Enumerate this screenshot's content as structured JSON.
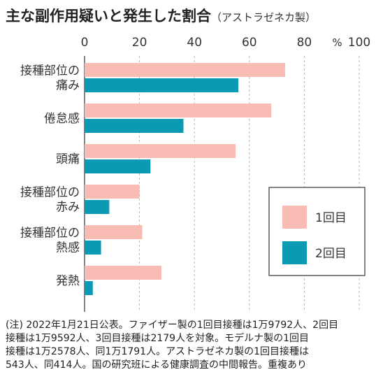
{
  "title": "主な副作用疑いと発生した割合",
  "subtitle": "（アストラゼネカ製）",
  "unit": "%",
  "colors": {
    "dose1": "#f8bcb4",
    "dose2": "#0a9ab4",
    "grid": "#b8b8b8",
    "axis": "#333333"
  },
  "chart_data": {
    "type": "bar",
    "orientation": "horizontal",
    "title": "主な副作用疑いと発生した割合",
    "subtitle": "（アストラゼネカ製）",
    "categories": [
      [
        "接種部位の",
        "痛み"
      ],
      [
        "倦怠感"
      ],
      [
        "頭痛"
      ],
      [
        "接種部位の",
        "赤み"
      ],
      [
        "接種部位の",
        "熱感"
      ],
      [
        "発熱"
      ]
    ],
    "series": [
      {
        "name": "1回目",
        "color": "#f8bcb4",
        "values": [
          73,
          68,
          55,
          20,
          21,
          28
        ]
      },
      {
        "name": "2回目",
        "color": "#0a9ab4",
        "values": [
          56,
          36,
          24,
          9,
          6,
          3
        ]
      }
    ],
    "xlim": [
      0,
      100
    ],
    "ticks": [
      "0",
      "20",
      "40",
      "60",
      "80",
      "100"
    ],
    "tick_values": [
      0,
      20,
      40,
      60,
      80,
      100
    ],
    "unit_label": "%",
    "grid": true,
    "legend_position": "right"
  },
  "note": [
    "(注) 2022年1月21日公表。ファイザー製の1回目接種は1万9792人、2回目",
    "接種は1万9592人、3回目接種は2179人を対象。モデルナ製の1回目",
    "接種は1万2578人、同1万1791人。アストラゼネカ製の1回目接種は",
    "543人、同414人。国の研究班による健康調査の中間報告。重複あり"
  ]
}
